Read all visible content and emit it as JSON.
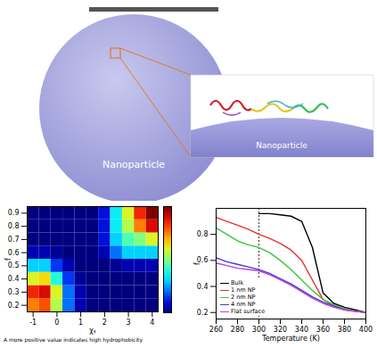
{
  "illustration": {
    "sphere_label": "Nanoparticle",
    "inset_label": "Nanoparticle"
  },
  "chart_data": [
    {
      "type": "heatmap",
      "x_label": "χₛ",
      "y_label": "f",
      "x": [
        -1,
        -0.5,
        0,
        0.5,
        1,
        1.5,
        2,
        2.5,
        3,
        3.5,
        4
      ],
      "y": [
        0.2,
        0.3,
        0.4,
        0.5,
        0.6,
        0.7,
        0.8,
        0.9
      ],
      "cells": [
        [
          0.75,
          0.8,
          0.55,
          0.2,
          0.05,
          0,
          0,
          0,
          0,
          0,
          0
        ],
        [
          0.85,
          0.9,
          0.6,
          0.2,
          0.05,
          0,
          0,
          0,
          0,
          0,
          0
        ],
        [
          0.6,
          0.65,
          0.4,
          0.15,
          0.02,
          0,
          0,
          0,
          0,
          0,
          0
        ],
        [
          0.3,
          0.3,
          0.15,
          0.05,
          0,
          0,
          0,
          0.02,
          0.05,
          0.05,
          0.05
        ],
        [
          0.05,
          0.05,
          0.02,
          0,
          0,
          0,
          0.05,
          0.2,
          0.3,
          0.3,
          0.3
        ],
        [
          0,
          0,
          0,
          0,
          0,
          0,
          0.1,
          0.3,
          0.45,
          0.5,
          0.6
        ],
        [
          0,
          0,
          0,
          0,
          0,
          0,
          0.1,
          0.35,
          0.55,
          0.75,
          0.9
        ],
        [
          0,
          0,
          0,
          0,
          0,
          0,
          0.1,
          0.35,
          0.6,
          0.85,
          1.0
        ]
      ],
      "xlim": [
        -1.25,
        4.25
      ],
      "ylim": [
        0.15,
        0.95
      ],
      "xticks": [
        -1,
        0,
        1,
        2,
        3,
        4
      ],
      "yticks": [
        0.2,
        0.3,
        0.4,
        0.5,
        0.6,
        0.7,
        0.8,
        0.9
      ],
      "colorbar_range": [
        0,
        1
      ],
      "caption": "A more positive value indicates high hydrophobicity"
    },
    {
      "type": "line",
      "x_label": "Temperature (K)",
      "y_label": "f",
      "x": [
        260,
        270,
        280,
        290,
        300,
        310,
        320,
        330,
        340,
        350,
        360,
        370,
        380,
        390,
        400
      ],
      "series": [
        {
          "name": "Bulk",
          "color": "#000000",
          "values": [
            null,
            null,
            null,
            null,
            0.96,
            0.96,
            0.95,
            0.94,
            0.9,
            0.7,
            0.35,
            0.27,
            0.24,
            0.22,
            0.2
          ]
        },
        {
          "name": "1 nm NP",
          "color": "#e8312f",
          "values": [
            0.93,
            0.9,
            0.87,
            0.84,
            0.8,
            0.77,
            0.73,
            0.68,
            0.6,
            0.45,
            0.3,
            0.25,
            0.23,
            0.21,
            0.2
          ]
        },
        {
          "name": "2 nm NP",
          "color": "#3cc83c",
          "values": [
            0.85,
            0.8,
            0.75,
            0.72,
            0.7,
            0.66,
            0.6,
            0.53,
            0.45,
            0.37,
            0.3,
            0.26,
            0.23,
            0.21,
            0.2
          ]
        },
        {
          "name": "4 nm NP",
          "color": "#3a3ae0",
          "values": [
            0.62,
            0.59,
            0.57,
            0.55,
            0.53,
            0.5,
            0.46,
            0.42,
            0.37,
            0.32,
            0.28,
            0.25,
            0.22,
            0.21,
            0.2
          ]
        },
        {
          "name": "Flat surface",
          "color": "#c040c8",
          "values": [
            0.58,
            0.56,
            0.54,
            0.53,
            0.52,
            0.49,
            0.45,
            0.41,
            0.36,
            0.31,
            0.27,
            0.24,
            0.22,
            0.21,
            0.2
          ]
        }
      ],
      "xlim": [
        260,
        400
      ],
      "ylim": [
        0.15,
        1.0
      ],
      "xticks": [
        260,
        280,
        300,
        320,
        340,
        360,
        380,
        400
      ],
      "yticks": [
        0.2,
        0.4,
        0.6,
        0.8
      ],
      "vline": 300,
      "legend": "bottom-left"
    }
  ]
}
